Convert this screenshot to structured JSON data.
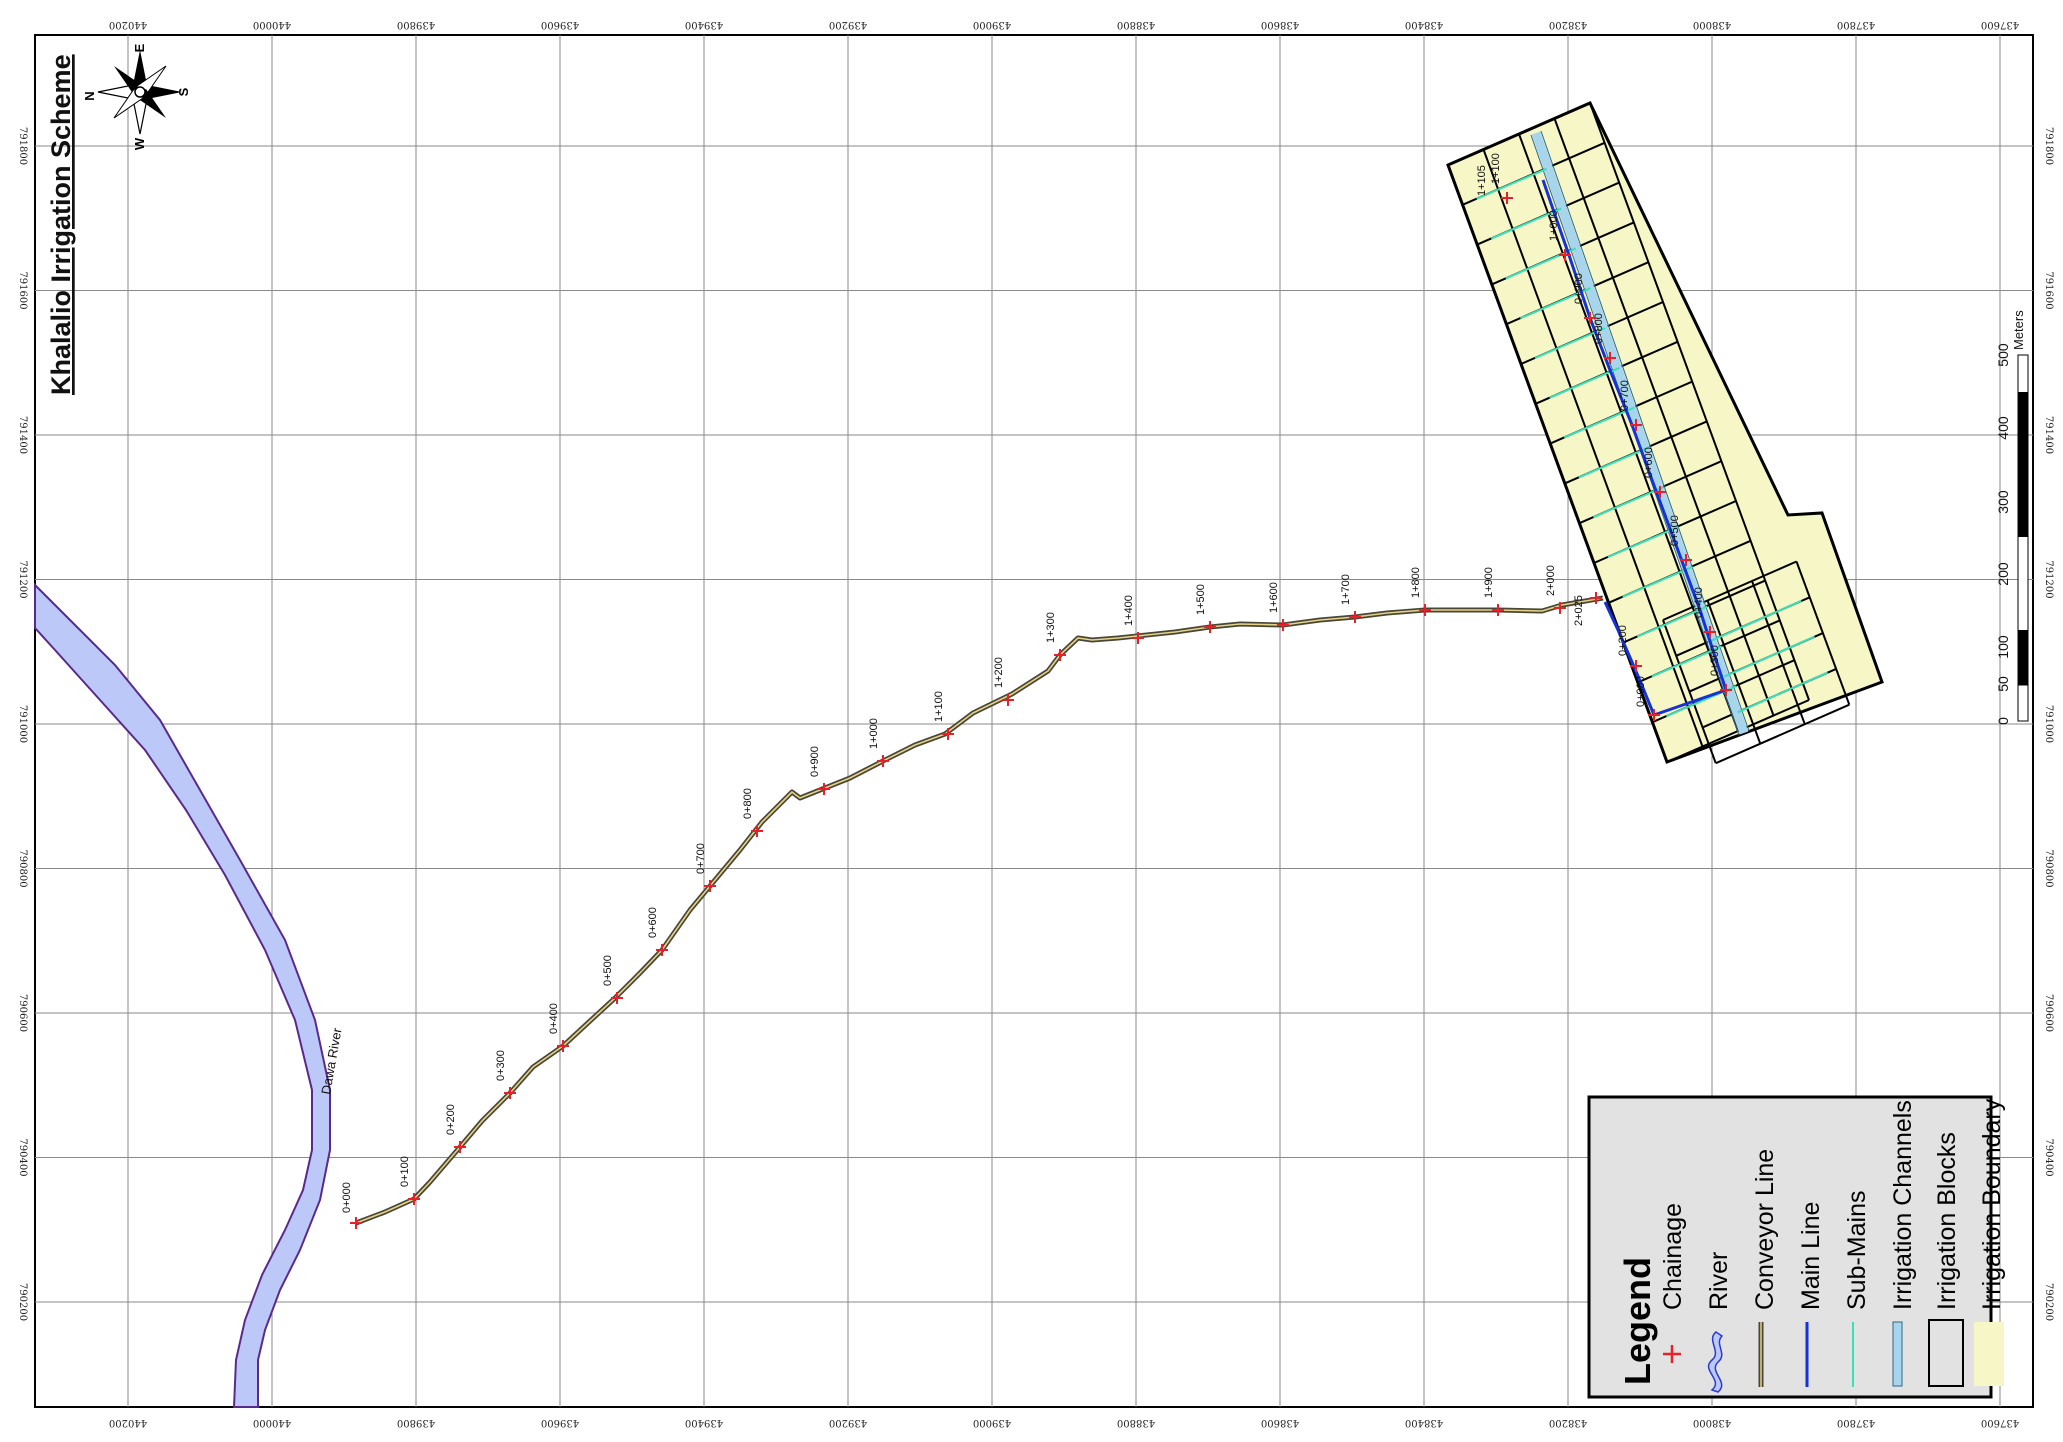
{
  "title": "Khalalio Irrigation Scheme",
  "compass": {
    "n": "N",
    "e": "E",
    "s": "S",
    "w": "W",
    "icon": "compass-rose-icon"
  },
  "easting_ticks": [
    "440200",
    "440000",
    "439800",
    "439600",
    "439400",
    "439200",
    "439000",
    "438800",
    "438600",
    "438400",
    "438200",
    "438000",
    "437800",
    "437600"
  ],
  "northing_ticks": [
    "791800",
    "791600",
    "791400",
    "791200",
    "791000",
    "790800",
    "790600",
    "790400",
    "790200"
  ],
  "river_label": "Dawa River",
  "scale_bar": {
    "unit": "Meters",
    "labels": [
      "0",
      "50",
      "100",
      "200",
      "300",
      "400",
      "500"
    ]
  },
  "conveyor_chainage": [
    "0+000",
    "0+100",
    "0+200",
    "0+300",
    "0+400",
    "0+500",
    "0+600",
    "0+700",
    "0+800",
    "0+900",
    "1+000",
    "1+100",
    "1+200",
    "1+300",
    "1+400",
    "1+500",
    "1+600",
    "1+700",
    "1+800",
    "1+900",
    "2+000",
    "2+025"
  ],
  "mainline_chainage": [
    "0+000",
    "0+200",
    "0+300",
    "0+400",
    "0+500",
    "0+600",
    "0+700",
    "0+800",
    "0+900",
    "1+000",
    "1+100",
    "1+105"
  ],
  "legend": {
    "title": "Legend",
    "items": [
      "Chainage",
      "River",
      "Conveyor Line",
      "Main Line",
      "Sub-Mains",
      "Irrigation Channels",
      "Irrigation Blocks",
      "Irrigation Boundary"
    ]
  },
  "colors": {
    "river": "#bcc8f8",
    "river_edge": "#5a2a8a",
    "chainage": "#e8202a",
    "conveyor": "#4a4636",
    "main_line": "#1432d8",
    "sub_mains": "#3ae0b8",
    "channel": "#a8d4ec",
    "boundary": "#f6f6c6",
    "legend_bg": "#e2e2e2"
  }
}
